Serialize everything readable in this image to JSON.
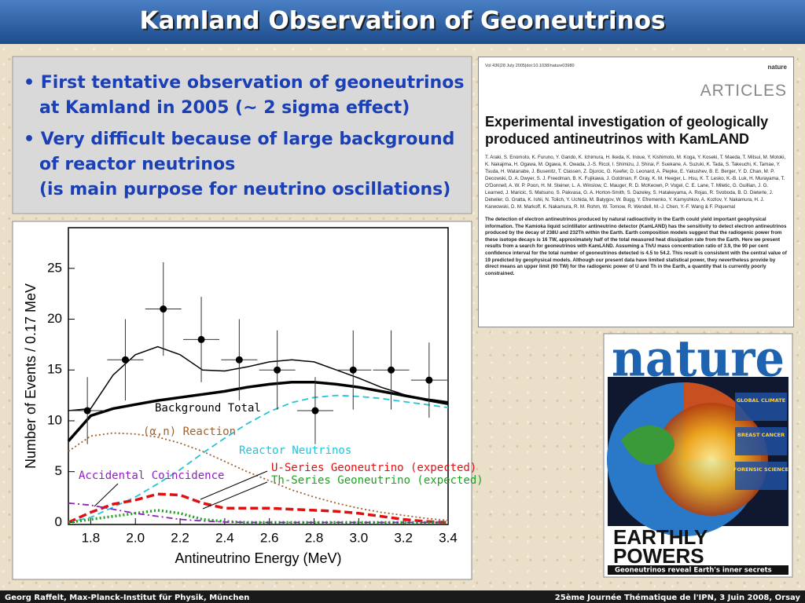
{
  "title": "Kamland Observation of Geoneutrinos",
  "bullets": [
    [
      "• First tentative observation of geoneutrinos",
      "at Kamland in 2005 (~ 2 sigma effect)"
    ],
    [
      "• Very difficult because of large background",
      "of reactor neutrinos",
      "(is main purpose for neutrino oscillations)"
    ]
  ],
  "chart_data": {
    "type": "line",
    "x_label": "Antineutrino Energy (MeV)",
    "y_label": "Number of Events / 0.17 MeV",
    "xlim": [
      1.7,
      3.4
    ],
    "ylim": [
      -0.2,
      29
    ],
    "xticks": [
      1.8,
      {
        "value": 2,
        "label": "2.0"
      },
      2.2,
      2.4,
      2.6,
      2.8,
      {
        "value": 3,
        "label": "3.0"
      },
      3.2,
      3.4
    ],
    "yticks": [
      0,
      5,
      10,
      15,
      20,
      25
    ],
    "x": [
      1.7,
      1.8,
      1.9,
      2.0,
      2.1,
      2.2,
      2.3,
      2.4,
      2.5,
      2.6,
      2.7,
      2.8,
      2.9,
      3.0,
      3.1,
      3.2,
      3.3,
      3.4
    ],
    "series": [
      {
        "color": "#000000",
        "line_style": "solid",
        "values": [
          11,
          11.2,
          14.5,
          16.5,
          17.3,
          16.5,
          15,
          14.9,
          15.3,
          15.8,
          16,
          15.8,
          15,
          14.2,
          13.3,
          12.6,
          12,
          11.6
        ]
      },
      {
        "name": "Background Total",
        "color": "#000000",
        "line_style": "thick",
        "values": [
          8,
          10.5,
          11.2,
          11.6,
          12,
          12.3,
          12.6,
          12.9,
          13.3,
          13.6,
          13.8,
          13.8,
          13.6,
          13.3,
          12.9,
          12.5,
          12.1,
          11.8
        ]
      },
      {
        "name": "(α,n) Reaction",
        "color": "#a0622d",
        "line_style": "dotted",
        "values": [
          7,
          8.5,
          8.8,
          8.7,
          8.4,
          7.8,
          7,
          6,
          5,
          4.1,
          3.2,
          2.5,
          1.9,
          1.4,
          1,
          0.7,
          0.4,
          0.2
        ]
      },
      {
        "name": "Reactor Neutrinos",
        "color": "#22c4d8",
        "line_style": "dashed",
        "values": [
          0,
          0.5,
          1.5,
          2.5,
          3.8,
          5.2,
          6.8,
          8.3,
          9.7,
          10.9,
          11.8,
          12.3,
          12.5,
          12.4,
          12.2,
          11.9,
          11.6,
          11.3
        ]
      },
      {
        "name": "U-Series Geoneutrino (expected)",
        "color": "#e01010",
        "line_style": "dashed-thick",
        "values": [
          0,
          1,
          1.8,
          2.2,
          2.8,
          2.7,
          1.9,
          1.4,
          1.4,
          1.4,
          1.3,
          1.2,
          1.1,
          0.9,
          0.6,
          0.3,
          0.1,
          0
        ]
      },
      {
        "name": "Th-Series Geoneutrino (expected)",
        "color": "#20a020",
        "line_style": "dotted-thick",
        "values": [
          0,
          0.3,
          0.6,
          0.9,
          1.2,
          0.9,
          0.3,
          0.1,
          0,
          0,
          0,
          0,
          0,
          0,
          0,
          0,
          0,
          0
        ]
      },
      {
        "name": "Accidental Coincidence",
        "color": "#9020c0",
        "line_style": "dashdot",
        "values": [
          1.9,
          1.7,
          1.3,
          0.9,
          0.6,
          0.3,
          0.15,
          0.05,
          0,
          0,
          0,
          0,
          0,
          0,
          0,
          0,
          0,
          0
        ]
      }
    ],
    "points": {
      "x": [
        1.785,
        1.955,
        2.125,
        2.295,
        2.465,
        2.635,
        2.805,
        2.975,
        3.145,
        3.315
      ],
      "y": [
        11,
        16,
        21,
        18,
        16,
        15,
        11,
        15,
        15,
        14
      ],
      "yerr": [
        3.3,
        4,
        4.6,
        4.2,
        4,
        3.9,
        3.3,
        3.9,
        3.9,
        3.7
      ]
    }
  },
  "paper": {
    "header": "Vol 436|28 July 2005|doi:10.1038/nature03980",
    "journal": "nature",
    "section": "ARTICLES",
    "title": "Experimental investigation of geologically produced antineutrinos with KamLAND",
    "authors": "T. Araki, S. Enomoto, K. Furuno, Y. Gando, K. Ichimura, H. Ikeda, K. Inoue, Y. Kishimoto, M. Koga, Y. Koseki, T. Maeda, T. Mitsui, M. Motoki, K. Nakajima, H. Ogawa, M. Ogawa, K. Owada, J.-S. Ricol, I. Shimizu, J. Shirai, F. Suekane, A. Suzuki, K. Tada, S. Takeuchi, K. Tamae, Y. Tsuda, H. Watanabe, J. Busenitz, T. Classen, Z. Djurcic, G. Keefer, D. Leonard, A. Piepke, E. Yakushev, B. E. Berger, Y. D. Chan, M. P. Decowski, D. A. Dwyer, S. J. Freedman, B. K. Fujikawa, J. Goldman, F. Gray, K. M. Heeger, L. Hsu, K. T. Lesko, K.-B. Luk, H. Murayama, T. O'Donnell, A. W. P. Poon, H. M. Steiner, L. A. Winslow, C. Mauger, R. D. McKeown, P. Vogel, C. E. Lane, T. Miletic, G. Guillian, J. G. Learned, J. Maricic, S. Matsuno, S. Pakvasa, G. A. Horton-Smith, S. Dazeley, S. Hatakeyama, A. Rojas, R. Svoboda, B. D. Dieterle, J. Detwiler, G. Gratta, K. Ishii, N. Tolich, Y. Uchida, M. Batygov, W. Bugg, Y. Efremenko, Y. Kamyshkov, A. Kozlov, Y. Nakamura, H. J. Karwowski, D. M. Markoff, K. Nakamura, R. M. Rohm, W. Tornow, R. Wendell, M.-J. Chen, Y.-F. Wang & F. Piquemal",
    "abstract": "The detection of electron antineutrinos produced by natural radioactivity in the Earth could yield important geophysical information. The Kamioka liquid scintillator antineutrino detector (KamLAND) has the sensitivity to detect electron antineutrinos produced by the decay of 238U and 232Th within the Earth. Earth composition models suggest that the radiogenic power from these isotope decays is 16 TW, approximately half of the total measured heat dissipation rate from the Earth. Here we present results from a search for geoneutrinos with KamLAND. Assuming a Th/U mass concentration ratio of 3.9, the 90 per cent confidence interval for the total number of geoneutrinos detected is 4.5 to 54.2. This result is consistent with the central value of 19 predicted by geophysical models. Although our present data have limited statistical power, they nevertheless provide by direct means an upper limit (60 TW) for the radiogenic power of U and Th in the Earth, a quantity that is currently poorly constrained."
  },
  "cover": {
    "masthead": "nature",
    "sidebar": [
      "GLOBAL CLIMATE",
      "BREAST CANCER",
      "FORENSIC SCIENCE"
    ],
    "headline": [
      "EARTHLY",
      "POWERS"
    ],
    "tagline": "Geoneutrinos reveal Earth's inner secrets"
  },
  "footer": {
    "left": "Georg Raffelt, Max-Planck-Institut für Physik, München",
    "right": "25ème Journée Thématique de l'IPN, 3 Juin 2008, Orsay"
  }
}
